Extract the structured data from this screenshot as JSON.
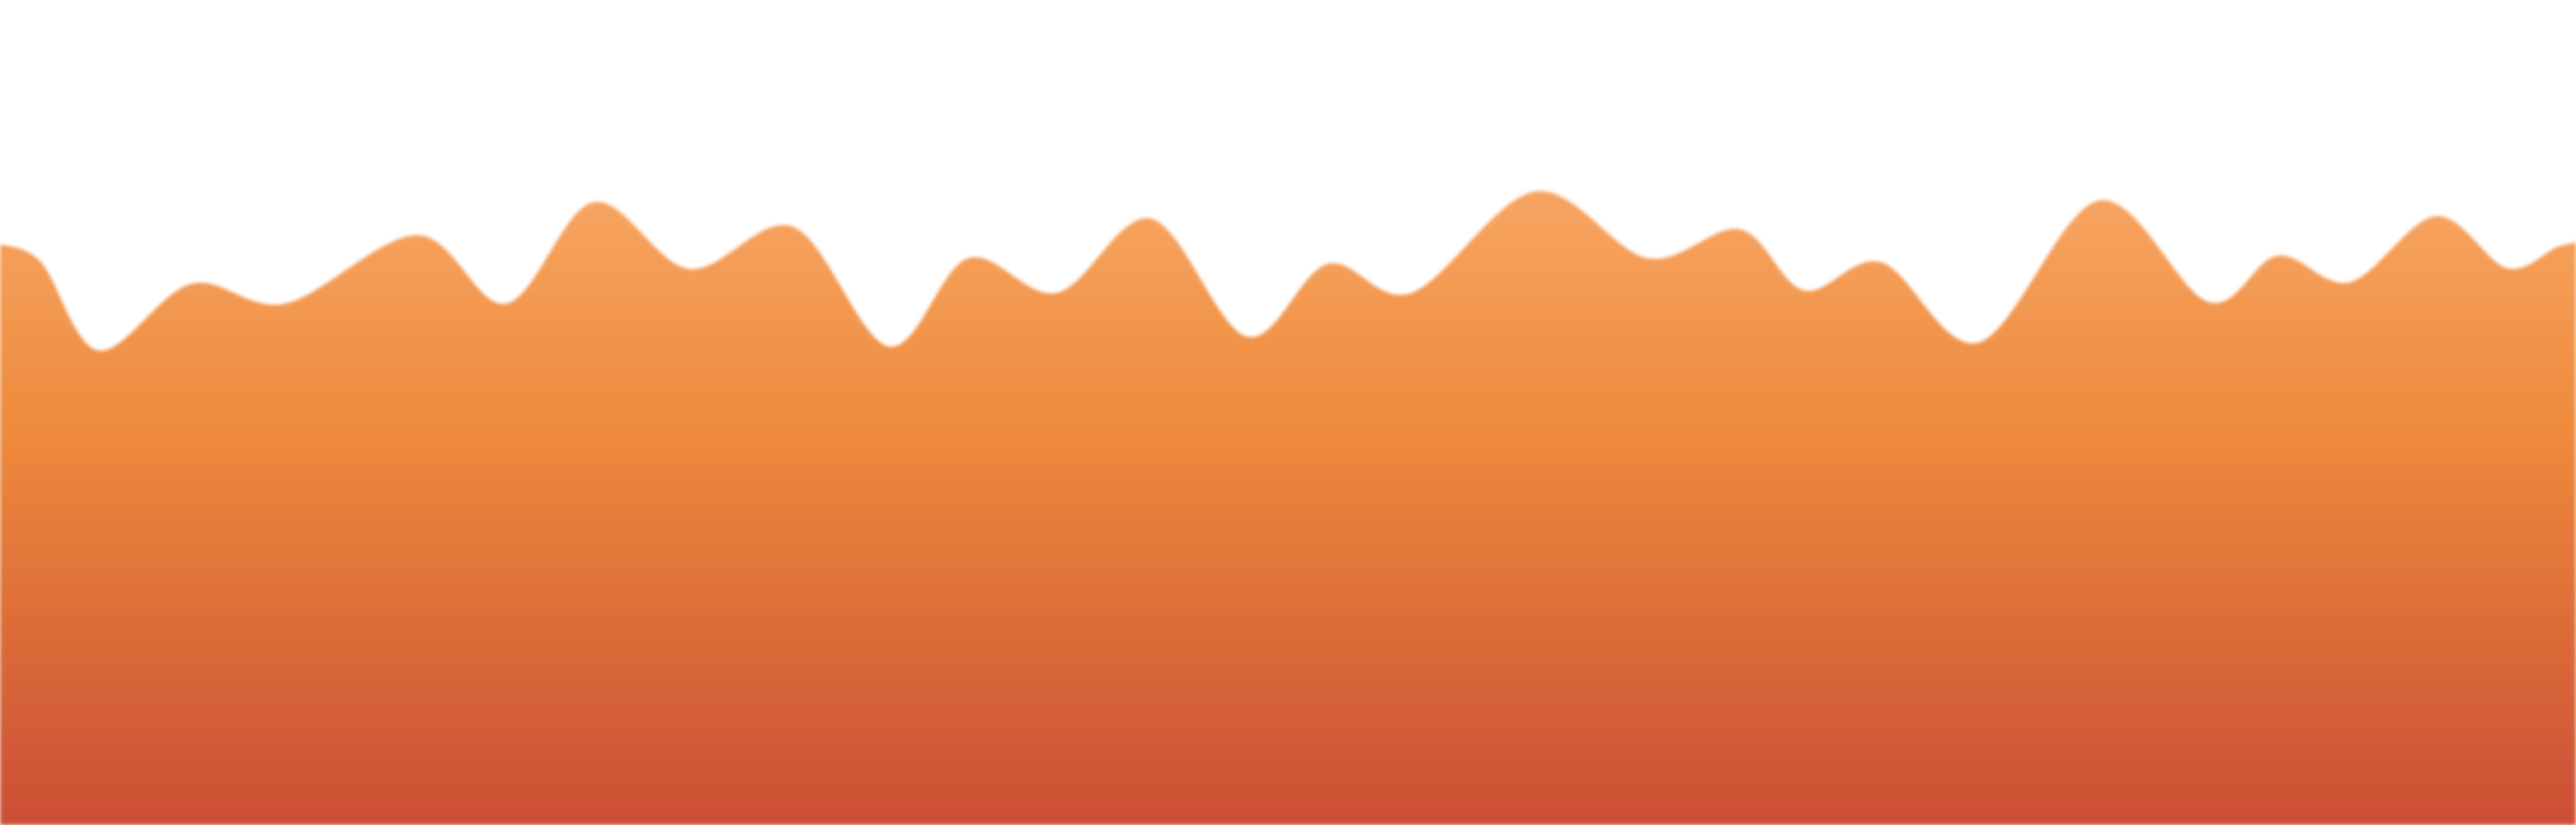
{
  "background_color": "#ffffff",
  "wave": {
    "gradient_top_color": "#f7a562",
    "gradient_mid_color": "#ee8a3c",
    "gradient_bottom_color": "#cb4e36",
    "edge_blur": "soft"
  }
}
